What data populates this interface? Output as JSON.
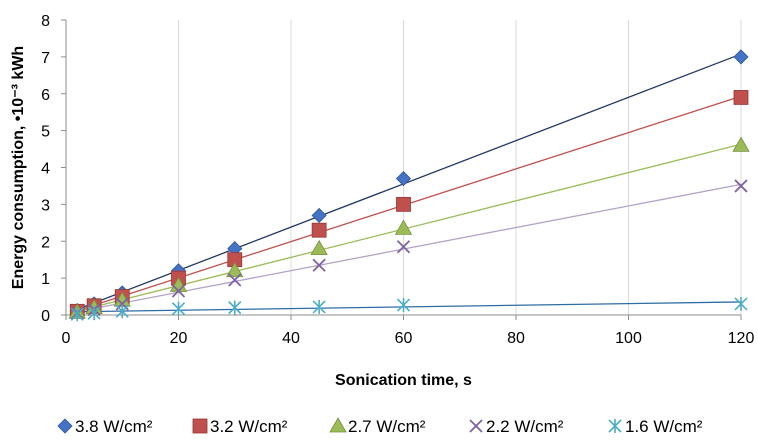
{
  "chart_data": {
    "type": "scatter",
    "xlabel": "Sonication time, s",
    "ylabel": "Energy consumption, •10⁻³ kWh",
    "xlim": [
      0,
      120
    ],
    "ylim": [
      0,
      8
    ],
    "xticks": [
      0,
      20,
      40,
      60,
      80,
      100,
      120
    ],
    "yticks": [
      0,
      1,
      2,
      3,
      4,
      5,
      6,
      7,
      8
    ],
    "grid": "vertical",
    "legend": "bottom",
    "trendlines": true,
    "series": [
      {
        "name": "3.8 W/cm²",
        "marker": "diamond",
        "color": "#4472C4",
        "line_color": "#1F3864",
        "x": [
          2,
          5,
          10,
          20,
          30,
          45,
          60,
          120
        ],
        "y": [
          0.12,
          0.3,
          0.6,
          1.2,
          1.8,
          2.7,
          3.7,
          7.0
        ]
      },
      {
        "name": "3.2 W/cm²",
        "marker": "square",
        "color": "#C0504D",
        "line_color": "#C0504D",
        "x": [
          2,
          5,
          10,
          20,
          30,
          45,
          60,
          120
        ],
        "y": [
          0.1,
          0.25,
          0.5,
          1.0,
          1.5,
          2.3,
          3.0,
          5.9
        ]
      },
      {
        "name": "2.7 W/cm²",
        "marker": "triangle",
        "color": "#9BBB59",
        "line_color": "#9BBB59",
        "x": [
          2,
          5,
          10,
          20,
          30,
          45,
          60,
          120
        ],
        "y": [
          0.08,
          0.2,
          0.4,
          0.8,
          1.2,
          1.8,
          2.35,
          4.6
        ]
      },
      {
        "name": "2.2 W/cm²",
        "marker": "x",
        "color": "#7F60A0",
        "line_color": "#B3A2C7",
        "x": [
          2,
          5,
          10,
          20,
          30,
          45,
          60,
          120
        ],
        "y": [
          0.05,
          0.15,
          0.3,
          0.65,
          0.95,
          1.35,
          1.85,
          3.5
        ]
      },
      {
        "name": "1.6 W/cm²",
        "marker": "asterisk",
        "color": "#4BACC6",
        "line_color": "#2E6DA4",
        "x": [
          2,
          5,
          10,
          20,
          30,
          45,
          60,
          120
        ],
        "y": [
          0.02,
          0.05,
          0.1,
          0.17,
          0.2,
          0.22,
          0.27,
          0.3
        ]
      }
    ]
  }
}
